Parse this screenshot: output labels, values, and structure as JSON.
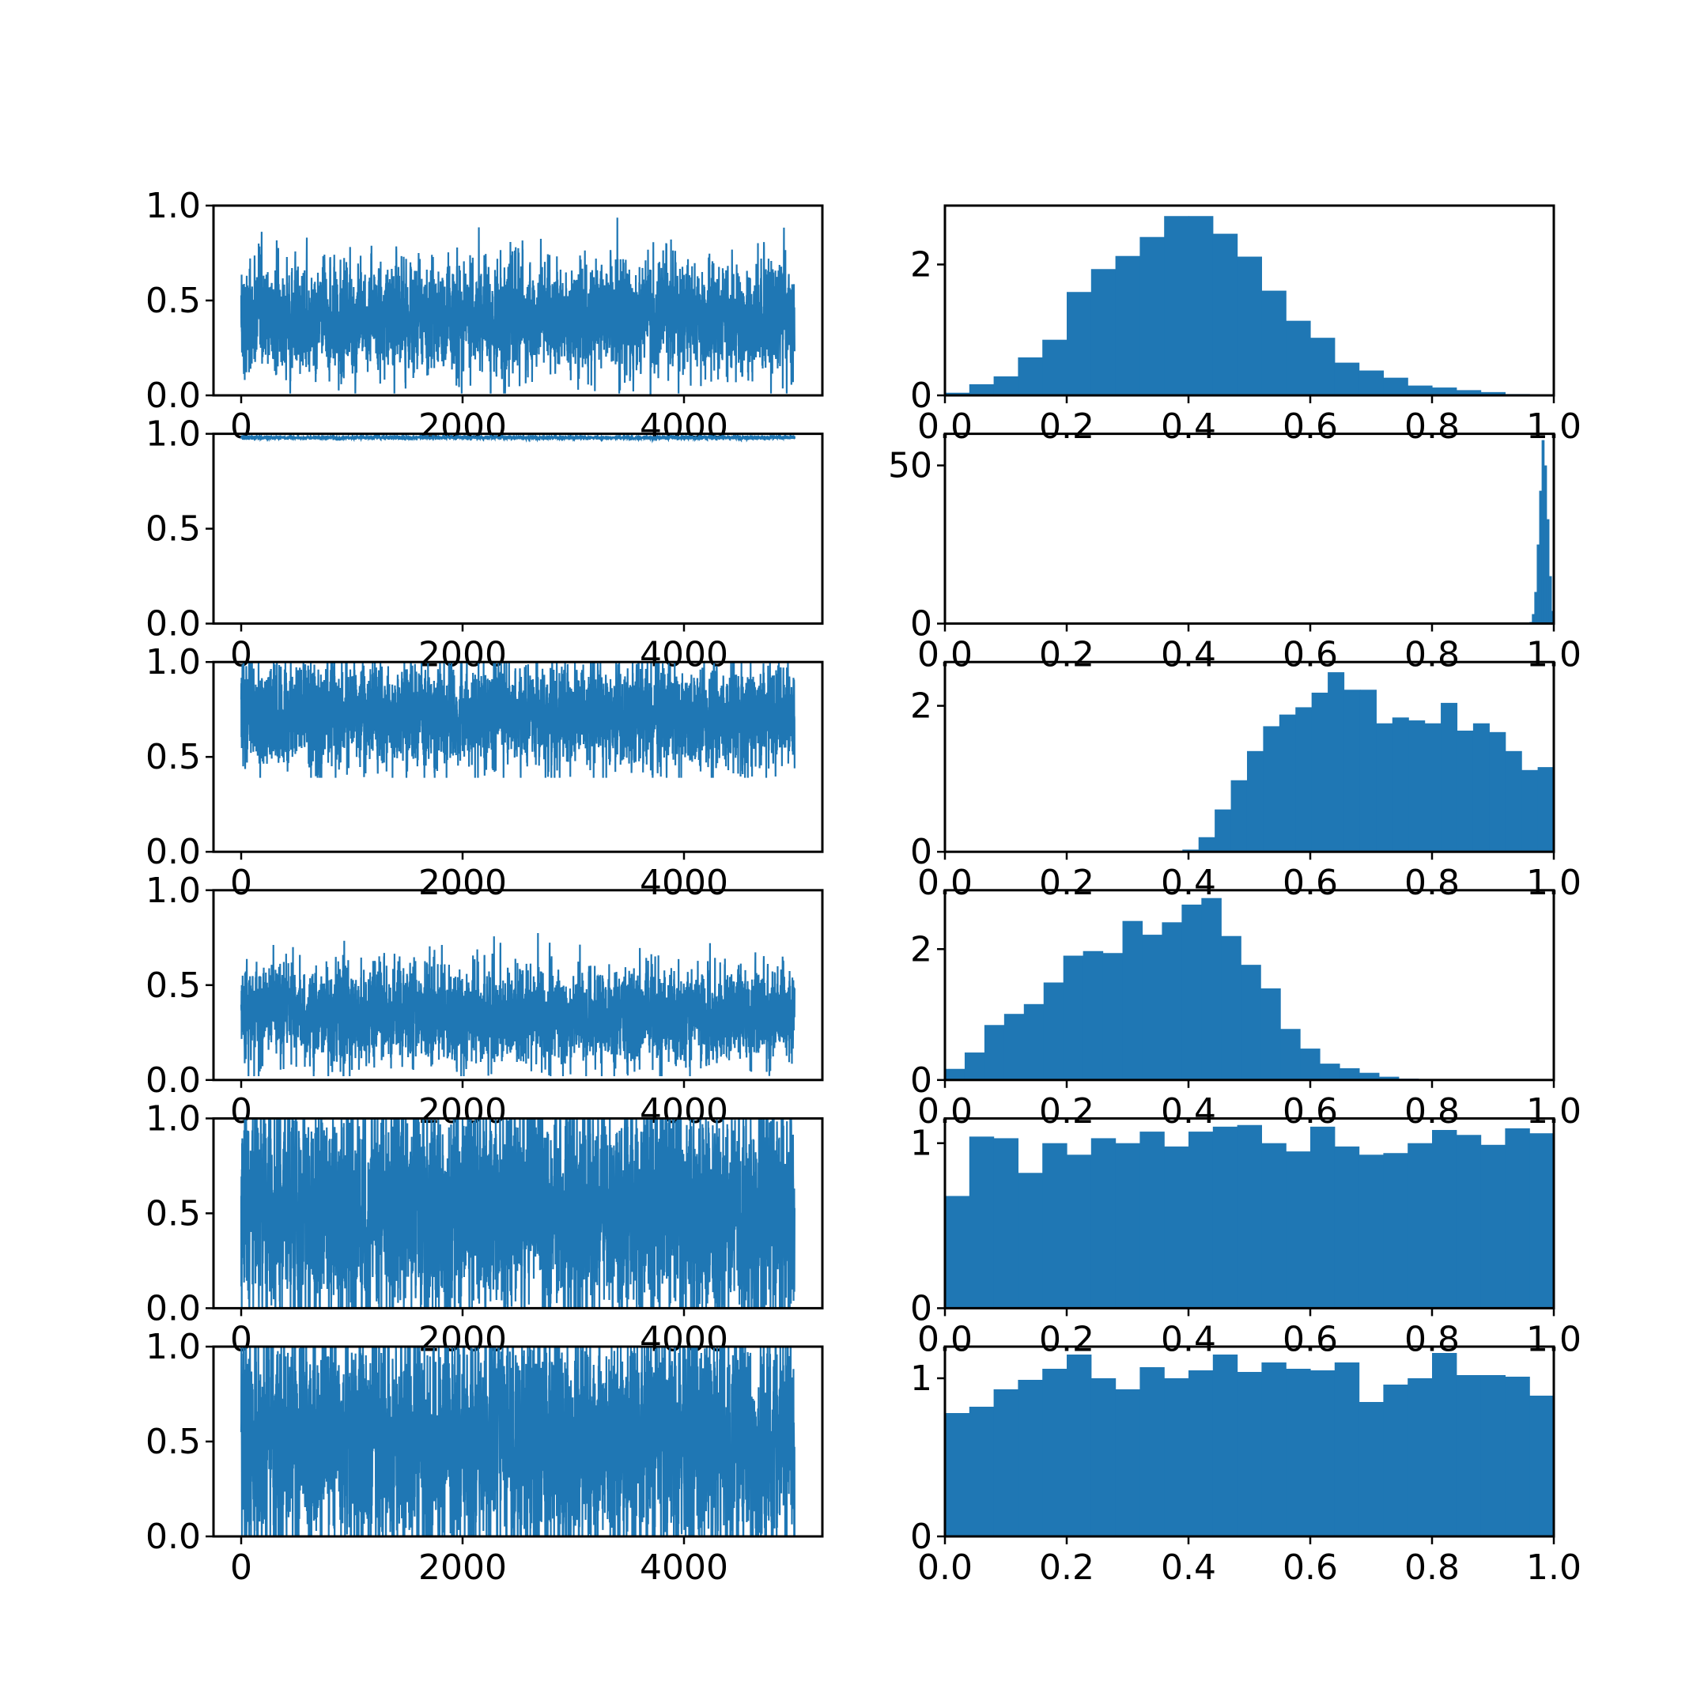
{
  "chart_data": {
    "type": "grid",
    "rows": 6,
    "cols": 2,
    "accent_color": "#1f77b4",
    "panels": [
      {
        "row": 0,
        "col": 0,
        "type": "line",
        "xlim": [
          -250,
          5250
        ],
        "ylim": [
          0,
          1
        ],
        "xticks": [
          "0",
          "2000",
          "4000"
        ],
        "yticks": [
          "0.0",
          "0.5",
          "1.0"
        ],
        "xtick_values": [
          0,
          2000,
          4000
        ],
        "ytick_values": [
          0,
          0.5,
          1
        ],
        "trace": {
          "n": 5000,
          "mean": 0.4,
          "sd": 0.14,
          "min": 0.01,
          "max": 0.99
        }
      },
      {
        "row": 0,
        "col": 1,
        "type": "histogram",
        "xlim": [
          0,
          1
        ],
        "ylim": [
          0,
          2.9
        ],
        "xticks": [
          "0.0",
          "0.2",
          "0.4",
          "0.6",
          "0.8",
          "1.0"
        ],
        "yticks": [
          "0",
          "2"
        ],
        "xtick_values": [
          0,
          0.2,
          0.4,
          0.6,
          0.8,
          1.0
        ],
        "ytick_values": [
          0,
          2
        ],
        "bin_range": [
          0,
          0.96
        ],
        "values": [
          0.04,
          0.17,
          0.29,
          0.58,
          0.85,
          1.58,
          1.93,
          2.13,
          2.42,
          2.74,
          2.74,
          2.47,
          2.12,
          1.6,
          1.14,
          0.88,
          0.5,
          0.38,
          0.27,
          0.15,
          0.12,
          0.08,
          0.05,
          0.02
        ]
      },
      {
        "row": 1,
        "col": 0,
        "type": "line",
        "xlim": [
          -250,
          5250
        ],
        "ylim": [
          0,
          1
        ],
        "xticks": [
          "0",
          "2000",
          "4000"
        ],
        "yticks": [
          "0.0",
          "0.5",
          "1.0"
        ],
        "xtick_values": [
          0,
          2000,
          4000
        ],
        "ytick_values": [
          0,
          0.5,
          1
        ],
        "trace": {
          "n": 5000,
          "mean": 0.98,
          "sd": 0.005,
          "min": 0.96,
          "max": 0.995
        }
      },
      {
        "row": 1,
        "col": 1,
        "type": "histogram",
        "xlim": [
          0,
          1
        ],
        "ylim": [
          0,
          60
        ],
        "xticks": [
          "0.0",
          "0.2",
          "0.4",
          "0.6",
          "0.8",
          "1.0"
        ],
        "yticks": [
          "0",
          "50"
        ],
        "xtick_values": [
          0,
          0.2,
          0.4,
          0.6,
          0.8,
          1.0
        ],
        "ytick_values": [
          0,
          50
        ],
        "bin_range": [
          0.96,
          1.0
        ],
        "values": [
          0.5,
          3,
          10,
          25,
          42,
          58,
          50,
          33,
          15,
          4
        ]
      },
      {
        "row": 2,
        "col": 0,
        "type": "line",
        "xlim": [
          -250,
          5250
        ],
        "ylim": [
          0,
          1
        ],
        "xticks": [
          "0",
          "2000",
          "4000"
        ],
        "yticks": [
          "0.0",
          "0.5",
          "1.0"
        ],
        "xtick_values": [
          0,
          2000,
          4000
        ],
        "ytick_values": [
          0,
          0.5,
          1
        ],
        "trace": {
          "n": 5000,
          "mean": 0.72,
          "sd": 0.13,
          "min": 0.39,
          "max": 0.999
        }
      },
      {
        "row": 2,
        "col": 1,
        "type": "histogram",
        "xlim": [
          0,
          1
        ],
        "ylim": [
          0,
          2.6
        ],
        "xticks": [
          "0.0",
          "0.2",
          "0.4",
          "0.6",
          "0.8",
          "1.0"
        ],
        "yticks": [
          "0",
          "2"
        ],
        "xtick_values": [
          0,
          0.2,
          0.4,
          0.6,
          0.8,
          1.0
        ],
        "ytick_values": [
          0,
          2
        ],
        "bin_range": [
          0.39,
          1.0
        ],
        "values": [
          0.03,
          0.2,
          0.58,
          0.98,
          1.38,
          1.72,
          1.88,
          1.98,
          2.18,
          2.46,
          2.22,
          2.22,
          1.76,
          1.84,
          1.8,
          1.76,
          2.04,
          1.66,
          1.76,
          1.64,
          1.38,
          1.12,
          1.16
        ]
      },
      {
        "row": 3,
        "col": 0,
        "type": "line",
        "xlim": [
          -250,
          5250
        ],
        "ylim": [
          0,
          1
        ],
        "xticks": [
          "0",
          "2000",
          "4000"
        ],
        "yticks": [
          "0.0",
          "0.5",
          "1.0"
        ],
        "xtick_values": [
          0,
          2000,
          4000
        ],
        "ytick_values": [
          0,
          0.5,
          1
        ],
        "trace": {
          "n": 5000,
          "mean": 0.34,
          "sd": 0.12,
          "min": 0.02,
          "max": 0.81
        }
      },
      {
        "row": 3,
        "col": 1,
        "type": "histogram",
        "xlim": [
          0,
          1
        ],
        "ylim": [
          0,
          2.9
        ],
        "xticks": [
          "0.0",
          "0.2",
          "0.4",
          "0.6",
          "0.8",
          "1.0"
        ],
        "yticks": [
          "0",
          "2"
        ],
        "xtick_values": [
          0,
          0.2,
          0.4,
          0.6,
          0.8,
          1.0
        ],
        "ytick_values": [
          0,
          2
        ],
        "bin_range": [
          0,
          0.81
        ],
        "values": [
          0.17,
          0.42,
          0.84,
          1.01,
          1.16,
          1.49,
          1.9,
          1.97,
          1.94,
          2.43,
          2.22,
          2.41,
          2.68,
          2.78,
          2.2,
          1.76,
          1.4,
          0.78,
          0.48,
          0.25,
          0.18,
          0.11,
          0.05,
          0.02,
          0.01
        ]
      },
      {
        "row": 4,
        "col": 0,
        "type": "line",
        "xlim": [
          -250,
          5250
        ],
        "ylim": [
          0,
          1
        ],
        "xticks": [
          "0",
          "2000",
          "4000"
        ],
        "yticks": [
          "0.0",
          "0.5",
          "1.0"
        ],
        "xtick_values": [
          0,
          2000,
          4000
        ],
        "ytick_values": [
          0,
          0.5,
          1
        ],
        "trace": {
          "n": 5000,
          "mean": 0.5,
          "sd": 0.29,
          "min": 0.001,
          "max": 0.999
        }
      },
      {
        "row": 4,
        "col": 1,
        "type": "histogram",
        "xlim": [
          0,
          1
        ],
        "ylim": [
          0,
          1.15
        ],
        "xticks": [
          "0.0",
          "0.2",
          "0.4",
          "0.6",
          "0.8",
          "1.0"
        ],
        "yticks": [
          "0",
          "1"
        ],
        "xtick_values": [
          0,
          0.2,
          0.4,
          0.6,
          0.8,
          1.0
        ],
        "ytick_values": [
          0,
          1
        ],
        "bin_range": [
          0,
          1.0
        ],
        "values": [
          0.68,
          1.04,
          1.03,
          0.82,
          1.0,
          0.93,
          1.03,
          1.0,
          1.07,
          0.98,
          1.07,
          1.1,
          1.11,
          1.0,
          0.95,
          1.1,
          0.98,
          0.93,
          0.94,
          1.0,
          1.08,
          1.05,
          0.99,
          1.09,
          1.06
        ]
      },
      {
        "row": 5,
        "col": 0,
        "type": "line",
        "xlim": [
          -250,
          5250
        ],
        "ylim": [
          0,
          1
        ],
        "xticks": [
          "0",
          "2000",
          "4000"
        ],
        "yticks": [
          "0.0",
          "0.5",
          "1.0"
        ],
        "xtick_values": [
          0,
          2000,
          4000
        ],
        "ytick_values": [
          0,
          0.5,
          1
        ],
        "trace": {
          "n": 5000,
          "mean": 0.5,
          "sd": 0.29,
          "min": 0.002,
          "max": 0.999
        }
      },
      {
        "row": 5,
        "col": 1,
        "type": "histogram",
        "xlim": [
          0,
          1
        ],
        "ylim": [
          0,
          1.2
        ],
        "xticks": [
          "0.0",
          "0.2",
          "0.4",
          "0.6",
          "0.8",
          "1.0"
        ],
        "yticks": [
          "0",
          "1"
        ],
        "xtick_values": [
          0,
          0.2,
          0.4,
          0.6,
          0.8,
          1.0
        ],
        "ytick_values": [
          0,
          1
        ],
        "bin_range": [
          0,
          1.0
        ],
        "values": [
          0.78,
          0.82,
          0.93,
          0.99,
          1.06,
          1.15,
          1.0,
          0.93,
          1.07,
          1.0,
          1.05,
          1.15,
          1.04,
          1.1,
          1.06,
          1.05,
          1.1,
          0.85,
          0.96,
          1.0,
          1.16,
          1.02,
          1.02,
          1.01,
          0.89
        ]
      }
    ]
  }
}
